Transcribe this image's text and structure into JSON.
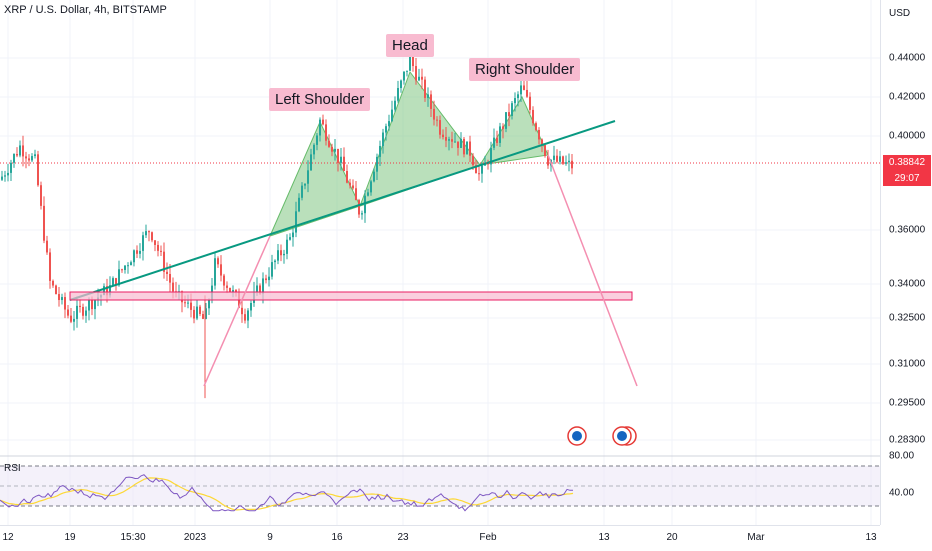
{
  "header": {
    "symbol": "XRP / U.S. Dollar, 4h, BITSTAMP"
  },
  "price_axis": {
    "unit": "USD",
    "ticks": [
      "0.44000",
      "0.42000",
      "0.40000",
      "0.36000",
      "0.34000",
      "0.32500",
      "0.31000",
      "0.29500",
      "0.28300"
    ],
    "current_price": "0.38842",
    "countdown": "29:07"
  },
  "rsi": {
    "label": "RSI",
    "ticks": [
      "80.00",
      "40.00"
    ]
  },
  "time_axis": {
    "ticks": [
      "12",
      "19",
      "15:30",
      "2023",
      "9",
      "16",
      "23",
      "Feb",
      "13",
      "20",
      "Mar",
      "13"
    ]
  },
  "annotations": {
    "left_shoulder": "Left Shoulder",
    "head": "Head",
    "right_shoulder": "Right Shoulder"
  },
  "colors": {
    "up": "#26a69a",
    "down": "#ef5350",
    "trendline": "#089981",
    "pattern_fill": "#81c784",
    "target_line": "#f48fb1",
    "support_zone": "#f06292",
    "rsi_line": "#7e57c2"
  },
  "chart_data": {
    "type": "candlestick",
    "price_range": [
      0.279,
      0.455
    ],
    "current_price": 0.38842,
    "pattern": "head-and-shoulders",
    "key_levels": {
      "left_shoulder": 0.408,
      "head": 0.432,
      "right_shoulder": 0.421,
      "neckline_start": 0.331,
      "neckline_end": 0.409,
      "support_zone": [
        0.332,
        0.335
      ],
      "projected_target": 0.3
    },
    "rsi_range": [
      20,
      95
    ],
    "rsi_levels": [
      70,
      30
    ]
  }
}
